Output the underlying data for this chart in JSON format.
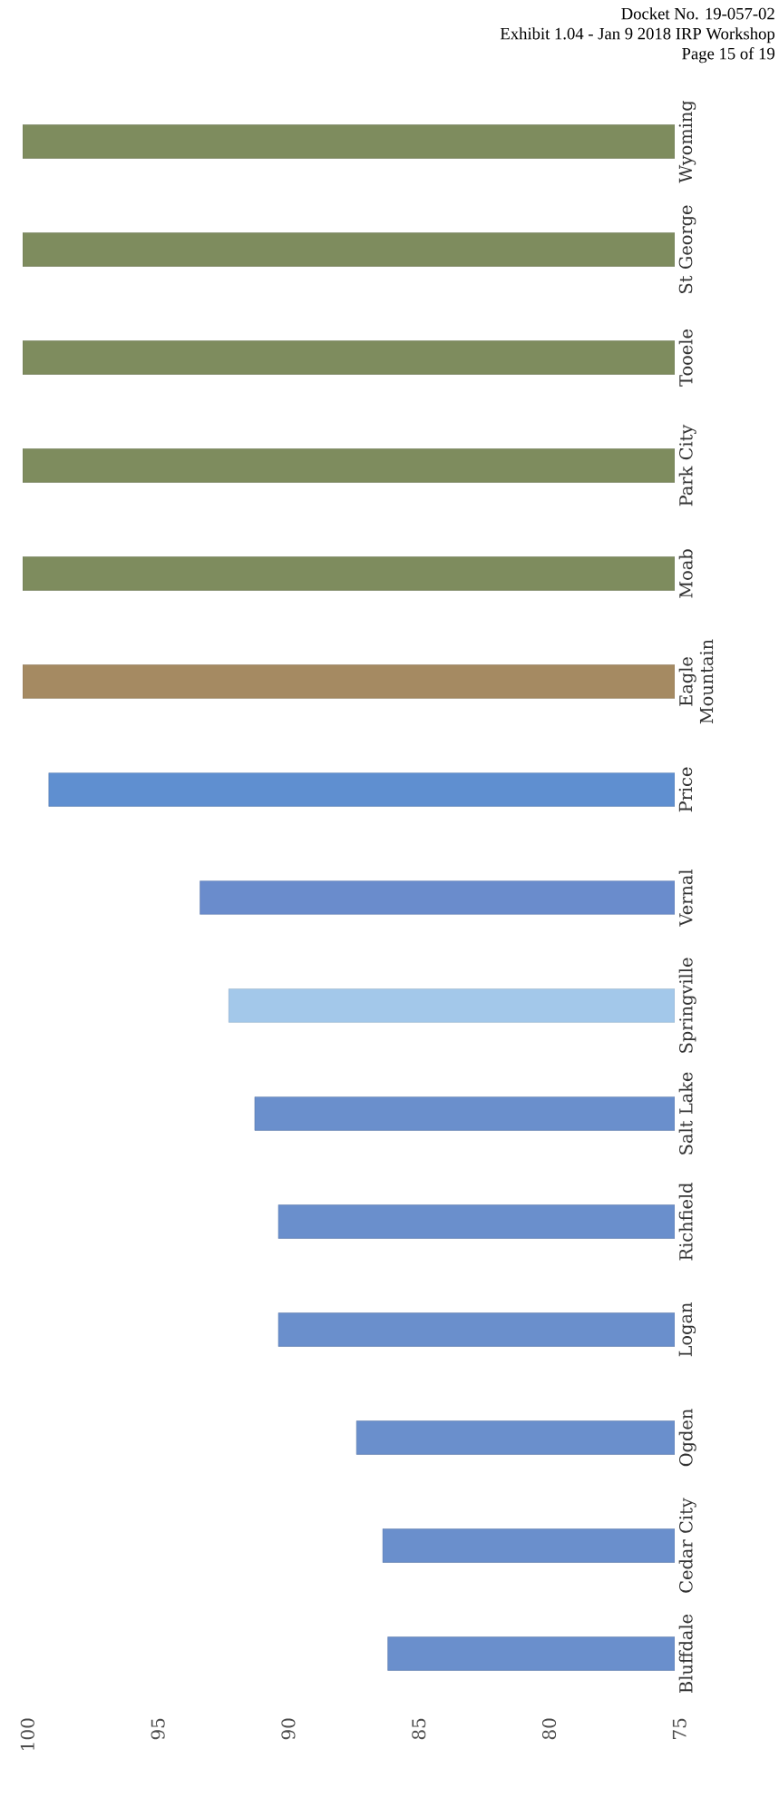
{
  "chart_data": {
    "type": "bar",
    "orientation": "horizontal",
    "categories": [
      "Wyoming",
      "St George",
      "Tooele",
      "Park City",
      "Moab",
      "Eagle Mountain",
      "Price",
      "Vernal",
      "Springville",
      "Salt Lake",
      "Richfield",
      "Logan",
      "Ogden",
      "Cedar City",
      "Bluffdale"
    ],
    "values": [
      100,
      100,
      100,
      100,
      100,
      100,
      99,
      93.2,
      92.1,
      91.1,
      90.2,
      90.2,
      87.2,
      86.2,
      86
    ],
    "colors": [
      "#7e8c5e",
      "#7e8c5e",
      "#7e8c5e",
      "#7e8c5e",
      "#7e8c5e",
      "#a58a62",
      "#5f8fd0",
      "#6a8ccc",
      "#a3c8ea",
      "#6a8fcc",
      "#6a8fcc",
      "#6a8fcc",
      "#6a8fcc",
      "#6a8fcc",
      "#6a8fcc"
    ],
    "xlim": [
      100,
      75
    ],
    "xticks": [
      100,
      95,
      90,
      85,
      80,
      75
    ],
    "annotations": [
      "Docket No. 19-057-02",
      "Exhibit 1.04 - Jan 9 2018 IRP Workshop",
      "Page 15 of 19"
    ]
  }
}
